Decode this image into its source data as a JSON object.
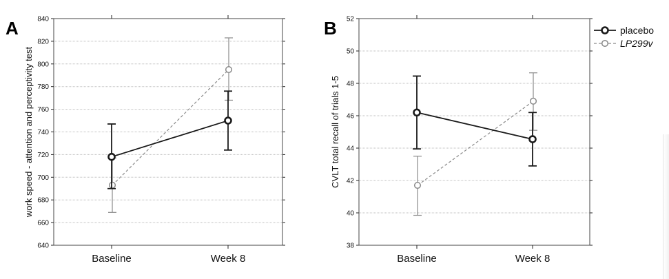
{
  "chart_data": [
    {
      "panel_label": "A",
      "type": "line",
      "categories": [
        "Baseline",
        "Week 8"
      ],
      "ylabel": "work speed - attention and perceptivity test",
      "ylim": [
        640,
        840
      ],
      "yticks": [
        640,
        660,
        680,
        700,
        720,
        740,
        760,
        780,
        800,
        820,
        840
      ],
      "grid": true,
      "series": [
        {
          "name": "placebo",
          "values": [
            718,
            750
          ],
          "error_low": [
            690,
            724
          ],
          "error_high": [
            747,
            776
          ],
          "color": "#1a1a1a",
          "style": "solid"
        },
        {
          "name": "LP299v",
          "values": [
            693,
            795
          ],
          "error_low": [
            669,
            768
          ],
          "error_high": [
            717,
            823
          ],
          "color": "#8a8a8a",
          "style": "dashed"
        }
      ]
    },
    {
      "panel_label": "B",
      "type": "line",
      "categories": [
        "Baseline",
        "Week 8"
      ],
      "ylabel": "CVLT total recall of trials 1-5",
      "ylim": [
        38,
        52
      ],
      "yticks": [
        38,
        40,
        42,
        44,
        46,
        48,
        50,
        52
      ],
      "grid": true,
      "legend_position": "top-right",
      "series": [
        {
          "name": "placebo",
          "values": [
            46.2,
            44.55
          ],
          "error_low": [
            43.95,
            42.9
          ],
          "error_high": [
            48.45,
            46.2
          ],
          "color": "#1a1a1a",
          "style": "solid"
        },
        {
          "name": "LP299v",
          "values": [
            41.7,
            46.9
          ],
          "error_low": [
            39.85,
            45.1
          ],
          "error_high": [
            43.5,
            48.65
          ],
          "color": "#8a8a8a",
          "style": "dashed"
        }
      ]
    }
  ]
}
